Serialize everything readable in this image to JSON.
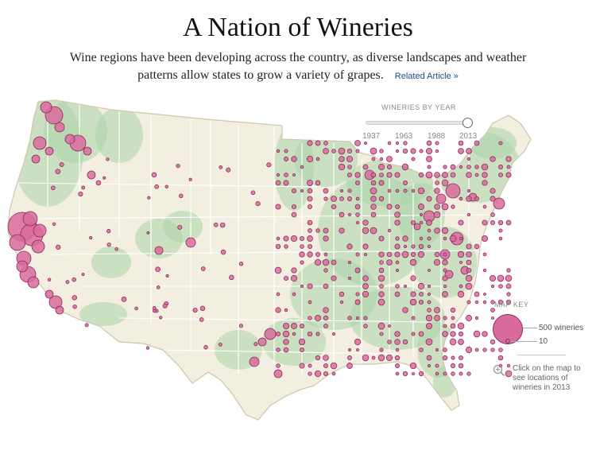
{
  "header": {
    "title": "A Nation of Wineries",
    "subtitle": "Wine regions have been developing across the country, as diverse landscapes and weather patterns allow states to grow a variety of grapes.",
    "related_link": "Related Article »"
  },
  "timeline": {
    "label": "WINERIES BY YEAR",
    "years": [
      "1937",
      "1963",
      "1988",
      "2013"
    ],
    "selected_year": "2013"
  },
  "map_key": {
    "title": "MAP KEY",
    "large_label": "500 wineries",
    "small_label": "10"
  },
  "hint": {
    "text": "Click on the map to see locations of wineries in 2013"
  },
  "colors": {
    "land": "#f3efe0",
    "forest": "#a9d4a8",
    "bubble_fill": "#d96b9c",
    "bubble_stroke": "#8c2b5c",
    "border": "#ffffff"
  },
  "icons": [
    "zoom-in-icon"
  ]
}
